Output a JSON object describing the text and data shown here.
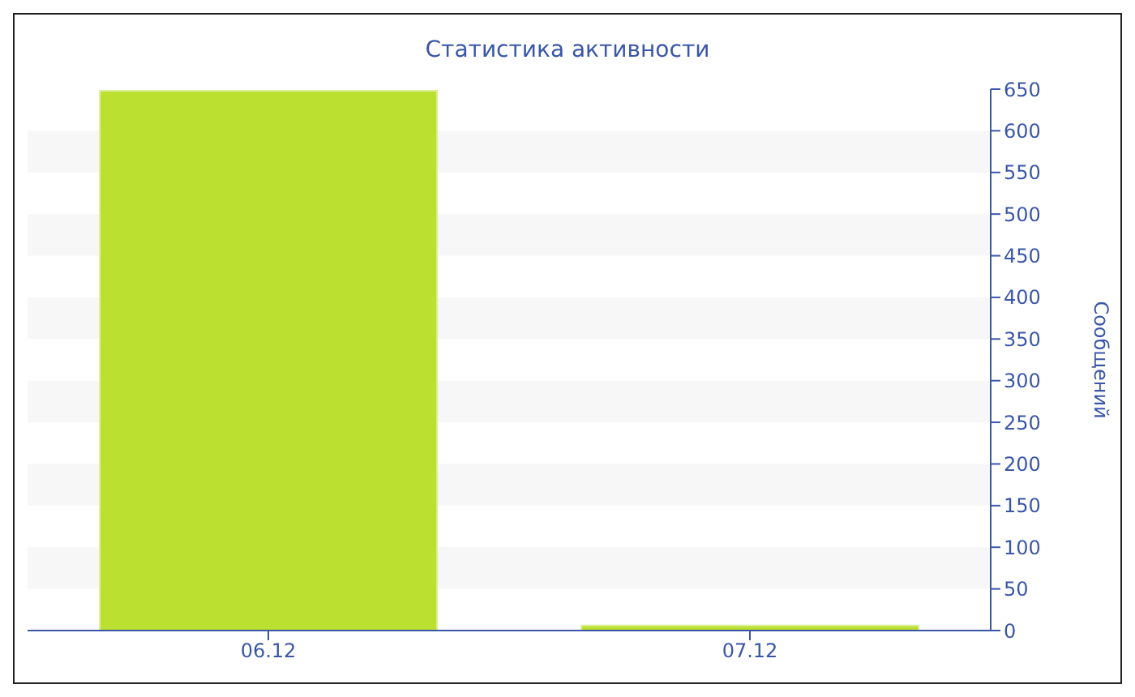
{
  "chart_data": {
    "type": "bar",
    "title": "Статистика активности",
    "ylabel": "Сообщений",
    "categories": [
      "06.12",
      "07.12"
    ],
    "values": [
      648,
      6
    ],
    "color": "#bce030",
    "ylim": [
      0,
      650
    ],
    "yticks": [
      0,
      50,
      100,
      150,
      200,
      250,
      300,
      350,
      400,
      450,
      500,
      550,
      600,
      650
    ],
    "bands": [
      {
        "axis": "y",
        "from": 50,
        "to": 100,
        "color": "#f7f7f7"
      },
      {
        "axis": "y",
        "from": 150,
        "to": 200,
        "color": "#f7f7f7"
      },
      {
        "axis": "y",
        "from": 250,
        "to": 300,
        "color": "#f7f7f7"
      },
      {
        "axis": "y",
        "from": 350,
        "to": 400,
        "color": "#f7f7f7"
      },
      {
        "axis": "y",
        "from": 450,
        "to": 500,
        "color": "#f7f7f7"
      },
      {
        "axis": "y",
        "from": 550,
        "to": 600,
        "color": "#f7f7f7"
      }
    ]
  }
}
